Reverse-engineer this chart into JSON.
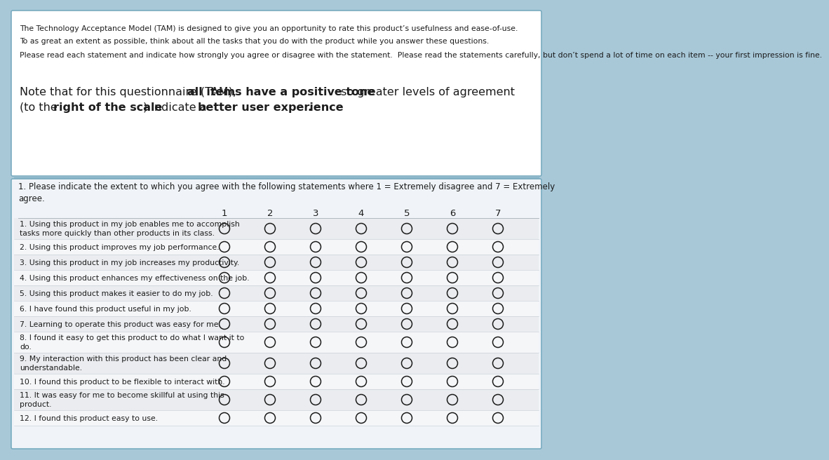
{
  "bg_outer": "#a8c8d8",
  "bg_white": "#ffffff",
  "bg_bottom": "#f0f4f8",
  "text_dark": "#1c1c1c",
  "border_color": "#7aacc0",
  "row_colors": [
    "#eaecef",
    "#f5f6f8"
  ],
  "intro_lines": [
    "The Technology Acceptance Model (TAM) is designed to give you an opportunity to rate this product’s usefulness and ease-of-use.",
    "To as great an extent as possible, think about all the tasks that you do with the product while you answer these questions.",
    "Please read each statement and indicate how strongly you agree or disagree with the statement.  Please read the statements carefully, but don’t spend a lot of time on each item -- your first impression is fine."
  ],
  "note_line1_normal1": "Note that for this questionnaire (TAM), ",
  "note_line1_bold1": "all items have a positive tone",
  "note_line1_normal2": " so greater levels of agreement",
  "note_line2_normal1": "(to the ",
  "note_line2_bold1": "right of the scale",
  "note_line2_normal2": ") indicate a ",
  "note_line2_bold2": "better user experience",
  "note_line2_normal3": ".",
  "instruction": "1. Please indicate the extent to which you agree with the following statements where 1 = Extremely disagree and 7 = Extremely\nagree.",
  "scale_labels": [
    "1",
    "2",
    "3",
    "4",
    "5",
    "6",
    "7"
  ],
  "items": [
    {
      "text": "1. Using this product in my job enables me to accomplish\ntasks more quickly than other products in its class.",
      "rows": 2
    },
    {
      "text": "2. Using this product improves my job performance.",
      "rows": 1
    },
    {
      "text": "3. Using this product in my job increases my productivity.",
      "rows": 1
    },
    {
      "text": "4. Using this product enhances my effectiveness on the job.",
      "rows": 1
    },
    {
      "text": "5. Using this product makes it easier to do my job.",
      "rows": 1
    },
    {
      "text": "6. I have found this product useful in my job.",
      "rows": 1
    },
    {
      "text": "7. Learning to operate this product was easy for me.",
      "rows": 1
    },
    {
      "text": "8. I found it easy to get this product to do what I want it to\ndo.",
      "rows": 2
    },
    {
      "text": "9. My interaction with this product has been clear and\nunderstandable.",
      "rows": 2
    },
    {
      "text": "10. I found this product to be flexible to interact with.",
      "rows": 1
    },
    {
      "text": "11. It was easy for me to become skillful at using this\nproduct.",
      "rows": 2
    },
    {
      "text": "12. I found this product easy to use.",
      "rows": 1
    }
  ],
  "font_intro": 7.8,
  "font_note": 11.5,
  "font_instr": 8.5,
  "font_item": 7.8,
  "font_scale": 9.5
}
